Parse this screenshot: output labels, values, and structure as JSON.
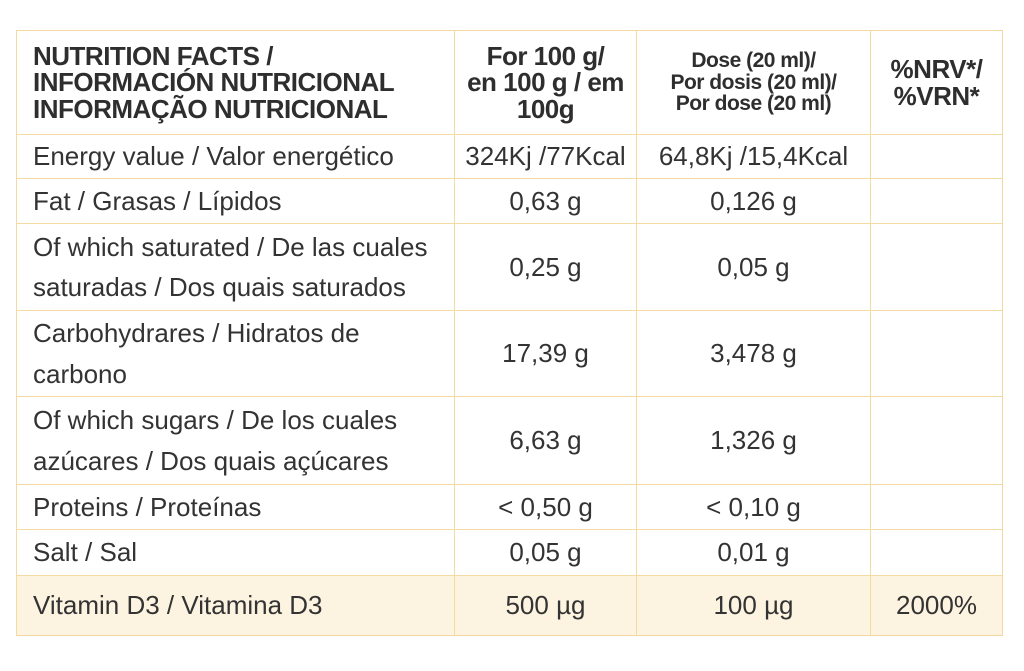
{
  "table": {
    "header": {
      "name_lines": [
        "NUTRITION FACTS /",
        "INFORMACIÓN NUTRICIONAL",
        "INFORMAÇÃO NUTRICIONAL"
      ],
      "per100_lines": [
        "For 100 g/",
        "en 100 g / em",
        "100g"
      ],
      "dose_lines": [
        "Dose (20 ml)/",
        "Por dosis (20 ml)/",
        "Por dose (20 ml)"
      ],
      "nrv_lines": [
        "%NRV*/",
        "%VRN*"
      ]
    },
    "rows": [
      {
        "name_lines": [
          "Energy value / Valor energético"
        ],
        "per100": "324Kj /77Kcal",
        "dose": "64,8Kj /15,4Kcal",
        "nrv": ""
      },
      {
        "name_lines": [
          "Fat / Grasas / Lípidos"
        ],
        "per100": "0,63 g",
        "dose": "0,126 g",
        "nrv": ""
      },
      {
        "name_lines": [
          "Of which saturated / De las cuales",
          "saturadas / Dos quais saturados"
        ],
        "per100": "0,25 g",
        "dose": "0,05 g",
        "nrv": ""
      },
      {
        "name_lines": [
          "Carbohydrares / Hidratos de",
          "carbono"
        ],
        "per100": "17,39 g",
        "dose": "3,478 g",
        "nrv": ""
      },
      {
        "name_lines": [
          "Of which  sugars / De los cuales",
          "azúcares / Dos quais açúcares"
        ],
        "per100": "6,63 g",
        "dose": "1,326 g",
        "nrv": ""
      },
      {
        "name_lines": [
          "Proteins / Proteínas"
        ],
        "per100": "< 0,50 g",
        "dose": "< 0,10 g",
        "nrv": ""
      },
      {
        "name_lines": [
          "Salt / Sal"
        ],
        "per100": "0,05  g",
        "dose": "0,01 g",
        "nrv": ""
      },
      {
        "name_lines": [
          "Vitamin D3 /  Vitamina D3"
        ],
        "per100": "500 µg",
        "dose": "100 µg",
        "nrv": "2000%"
      }
    ]
  },
  "colors": {
    "border": "#f4d9a0",
    "highlight_row": "#fdf3e1",
    "text": "#333333"
  }
}
